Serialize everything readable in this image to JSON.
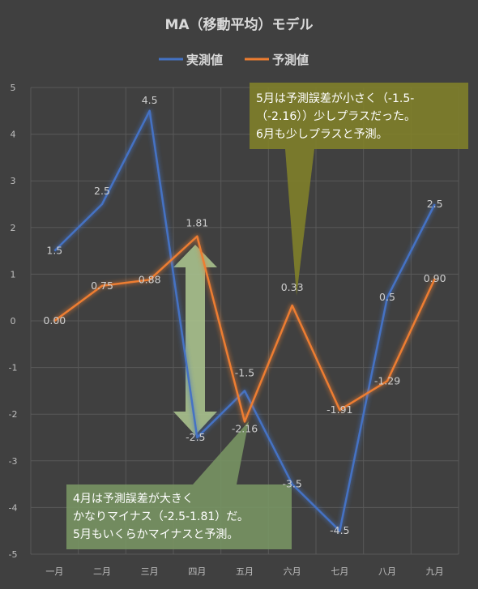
{
  "chart_data": {
    "type": "line",
    "title": "MA（移動平均）モデル",
    "categories": [
      "一月",
      "二月",
      "三月",
      "四月",
      "五月",
      "六月",
      "七月",
      "八月",
      "九月"
    ],
    "ylim": [
      -5,
      5
    ],
    "yticks": [
      5,
      4,
      3,
      2,
      1,
      0,
      -1,
      -2,
      -3,
      -4,
      -5
    ],
    "grid": true,
    "legend_position": "top",
    "series": [
      {
        "name": "実測値",
        "color": "#4472c4",
        "values": [
          1.5,
          2.5,
          4.5,
          -2.5,
          -1.5,
          -3.5,
          -4.5,
          0.5,
          2.5
        ],
        "labels": [
          "1.5",
          "2.5",
          "4.5",
          "-2.5",
          "-1.5",
          "-3.5",
          "-4.5",
          "0.5",
          "2.5"
        ]
      },
      {
        "name": "予測値",
        "color": "#ed7d31",
        "values": [
          0.0,
          0.75,
          0.88,
          1.81,
          -2.16,
          0.33,
          -1.91,
          -1.29,
          0.9
        ],
        "labels": [
          "0.00",
          "0.75",
          "0.88",
          "1.81",
          "-2.16",
          "0.33",
          "-1.91",
          "-1.29",
          "0.90"
        ]
      }
    ],
    "annotations": {
      "top_callout": [
        "5月は予測誤差が小さく（-1.5-",
        "（-2.16））少しプラスだった。",
        "6月も少しプラスと予測。"
      ],
      "bottom_callout": [
        "4月は予測誤差が大きく",
        "かなりマイナス（-2.5-1.81）だ。",
        "5月もいくらかマイナスと予測。"
      ]
    }
  },
  "colors": {
    "background": "#404040",
    "grid": "#595959",
    "top_callout": "#7f7f2a",
    "bottom_callout": "#789463",
    "arrow": "#a9c18d"
  }
}
